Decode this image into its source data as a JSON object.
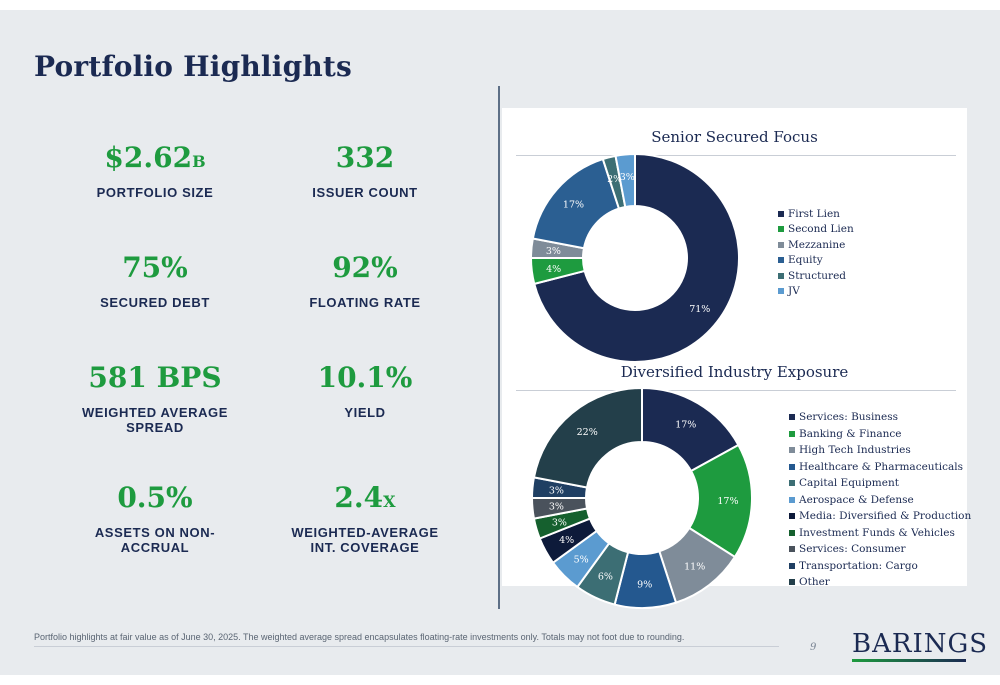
{
  "title": "Portfolio Highlights",
  "metrics": [
    {
      "value": "$2.62",
      "suffix": "B",
      "label": "PORTFOLIO SIZE"
    },
    {
      "value": "332",
      "suffix": "",
      "label": "ISSUER COUNT"
    },
    {
      "value": "75%",
      "suffix": "",
      "label": "SECURED DEBT"
    },
    {
      "value": "92%",
      "suffix": "",
      "label": "FLOATING RATE"
    },
    {
      "value": "581 BPS",
      "suffix": "",
      "label": "WEIGHTED AVERAGE SPREAD"
    },
    {
      "value": "10.1%",
      "suffix": "",
      "label": "YIELD"
    },
    {
      "value": "0.5%",
      "suffix": "",
      "label": "ASSETS ON NON-ACCRUAL"
    },
    {
      "value": "2.4",
      "suffix": "X",
      "label": "WEIGHTED-AVERAGE INT. COVERAGE"
    }
  ],
  "chart_data": [
    {
      "type": "pie",
      "donut": true,
      "title": "Senior Secured Focus",
      "legend_position": "right",
      "categories": [
        "First Lien",
        "Second Lien",
        "Mezzanine",
        "Equity",
        "Structured",
        "JV"
      ],
      "values": [
        71,
        4,
        3,
        17,
        2,
        3
      ],
      "labels": [
        "71%",
        "4%",
        "3%",
        "17%",
        "2%",
        "3%"
      ],
      "colors": [
        "#1b2a52",
        "#1e9b3f",
        "#7f8c99",
        "#2b5f92",
        "#3c6e74",
        "#5b9bd0"
      ]
    },
    {
      "type": "pie",
      "donut": true,
      "title": "Diversified Industry Exposure",
      "legend_position": "right",
      "categories": [
        "Services: Business",
        "Banking & Finance",
        "High Tech Industries",
        "Healthcare & Pharmaceuticals",
        "Capital Equipment",
        "Aerospace & Defense",
        "Media: Diversified & Production",
        "Investment Funds & Vehicles",
        "Services: Consumer",
        "Transportation: Cargo",
        "Other"
      ],
      "values": [
        17,
        17,
        11,
        9,
        6,
        5,
        4,
        3,
        3,
        3,
        22
      ],
      "labels": [
        "17%",
        "17%",
        "11%",
        "9%",
        "6%",
        "5%",
        "4%",
        "3%",
        "3%",
        "3%",
        "22%"
      ],
      "colors": [
        "#1b2a52",
        "#1e9b3f",
        "#7f8c99",
        "#24588f",
        "#3c6e74",
        "#5b9bd0",
        "#0d1a3a",
        "#15602e",
        "#4a525c",
        "#1f3f63",
        "#233f4a"
      ]
    }
  ],
  "footnote": "Portfolio highlights at fair value as of June 30, 2025. The weighted average spread encapsulates floating-rate investments only. Totals may not foot due to rounding.",
  "page_number": "9",
  "logo_text": "BARINGS"
}
